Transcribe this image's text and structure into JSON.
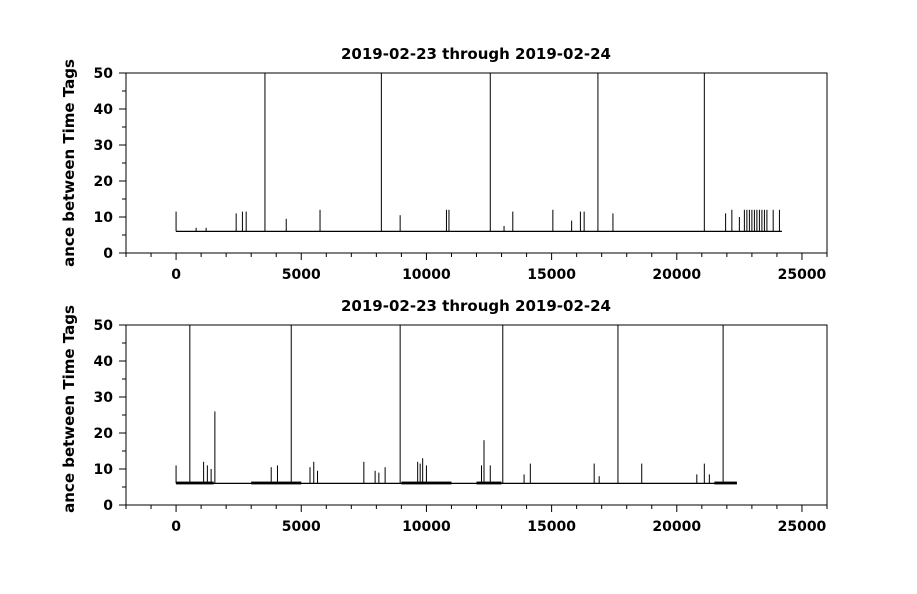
{
  "chart_data": [
    {
      "type": "line",
      "title": "2019-02-23 through 2019-02-24",
      "ylabel": "ance between Time Tags",
      "xlabel": "",
      "xlim": [
        -2000,
        26000
      ],
      "ylim": [
        0,
        50
      ],
      "xticks": [
        0,
        5000,
        10000,
        15000,
        20000,
        25000
      ],
      "xtick_labels": [
        "0",
        "5000",
        "10000",
        "15000",
        "20000",
        "25000"
      ],
      "yticks": [
        0,
        10,
        20,
        30,
        40,
        50
      ],
      "ytick_labels": [
        "0",
        "10",
        "20",
        "30",
        "40",
        "50"
      ],
      "baseline": {
        "x": [
          0,
          24200
        ],
        "y": 6
      },
      "spikes": [
        {
          "x": 0,
          "y": 11.5
        },
        {
          "x": 800,
          "y": 7
        },
        {
          "x": 1200,
          "y": 7
        },
        {
          "x": 2400,
          "y": 11
        },
        {
          "x": 2650,
          "y": 11.5
        },
        {
          "x": 2800,
          "y": 11.5
        },
        {
          "x": 3550,
          "y": 50
        },
        {
          "x": 4400,
          "y": 9.5
        },
        {
          "x": 5750,
          "y": 12
        },
        {
          "x": 8200,
          "y": 50
        },
        {
          "x": 8950,
          "y": 10.5
        },
        {
          "x": 10800,
          "y": 12
        },
        {
          "x": 10900,
          "y": 12
        },
        {
          "x": 12550,
          "y": 50
        },
        {
          "x": 13100,
          "y": 7.5
        },
        {
          "x": 13450,
          "y": 11.5
        },
        {
          "x": 15050,
          "y": 12
        },
        {
          "x": 15800,
          "y": 9
        },
        {
          "x": 16150,
          "y": 11.5
        },
        {
          "x": 16300,
          "y": 11.5
        },
        {
          "x": 16850,
          "y": 50
        },
        {
          "x": 17450,
          "y": 11
        },
        {
          "x": 21100,
          "y": 50
        },
        {
          "x": 21950,
          "y": 11
        },
        {
          "x": 22200,
          "y": 12
        },
        {
          "x": 22500,
          "y": 10
        },
        {
          "x": 22700,
          "y": 12
        },
        {
          "x": 22800,
          "y": 12
        },
        {
          "x": 22900,
          "y": 12
        },
        {
          "x": 23000,
          "y": 12
        },
        {
          "x": 23100,
          "y": 12
        },
        {
          "x": 23200,
          "y": 12
        },
        {
          "x": 23300,
          "y": 12
        },
        {
          "x": 23400,
          "y": 12
        },
        {
          "x": 23500,
          "y": 12
        },
        {
          "x": 23600,
          "y": 12
        },
        {
          "x": 23850,
          "y": 12
        },
        {
          "x": 24100,
          "y": 12
        }
      ]
    },
    {
      "type": "line",
      "title": "2019-02-23 through 2019-02-24",
      "ylabel": "ance between Time Tags",
      "xlabel": "",
      "xlim": [
        -2000,
        26000
      ],
      "ylim": [
        0,
        50
      ],
      "xticks": [
        0,
        5000,
        10000,
        15000,
        20000,
        25000
      ],
      "xtick_labels": [
        "0",
        "5000",
        "10000",
        "15000",
        "20000",
        "25000"
      ],
      "yticks": [
        0,
        10,
        20,
        30,
        40,
        50
      ],
      "ytick_labels": [
        "0",
        "10",
        "20",
        "30",
        "40",
        "50"
      ],
      "baseline": {
        "x": [
          0,
          22400
        ],
        "y": 6
      },
      "noise_band": [
        {
          "x0": 0,
          "x1": 1500,
          "y": 6.5
        },
        {
          "x0": 3000,
          "y_dummy": 0,
          "x1": 5000,
          "y": 6.5
        },
        {
          "x0": 9000,
          "x1": 11000,
          "y": 6.5
        },
        {
          "x0": 12000,
          "x1": 13000,
          "y": 6.5
        },
        {
          "x0": 21500,
          "x1": 22400,
          "y": 6.5
        }
      ],
      "spikes": [
        {
          "x": 0,
          "y": 11
        },
        {
          "x": 550,
          "y": 50
        },
        {
          "x": 1100,
          "y": 12
        },
        {
          "x": 1250,
          "y": 11
        },
        {
          "x": 1400,
          "y": 10
        },
        {
          "x": 1550,
          "y": 26
        },
        {
          "x": 3800,
          "y": 10.5
        },
        {
          "x": 4050,
          "y": 11
        },
        {
          "x": 4600,
          "y": 50
        },
        {
          "x": 5350,
          "y": 10.5
        },
        {
          "x": 5500,
          "y": 12
        },
        {
          "x": 5650,
          "y": 9.5
        },
        {
          "x": 7500,
          "y": 12
        },
        {
          "x": 7950,
          "y": 9.5
        },
        {
          "x": 8100,
          "y": 9
        },
        {
          "x": 8350,
          "y": 10.5
        },
        {
          "x": 8950,
          "y": 50
        },
        {
          "x": 9650,
          "y": 12
        },
        {
          "x": 9750,
          "y": 11.5
        },
        {
          "x": 9850,
          "y": 13
        },
        {
          "x": 10000,
          "y": 11
        },
        {
          "x": 12200,
          "y": 11
        },
        {
          "x": 12300,
          "y": 18
        },
        {
          "x": 12550,
          "y": 11
        },
        {
          "x": 13050,
          "y": 50
        },
        {
          "x": 13900,
          "y": 8.5
        },
        {
          "x": 14150,
          "y": 11.5
        },
        {
          "x": 16700,
          "y": 11.5
        },
        {
          "x": 16900,
          "y": 8
        },
        {
          "x": 17650,
          "y": 50
        },
        {
          "x": 18600,
          "y": 11.5
        },
        {
          "x": 20800,
          "y": 8.5
        },
        {
          "x": 21100,
          "y": 11.5
        },
        {
          "x": 21300,
          "y": 8.5
        },
        {
          "x": 21850,
          "y": 50
        }
      ]
    }
  ]
}
